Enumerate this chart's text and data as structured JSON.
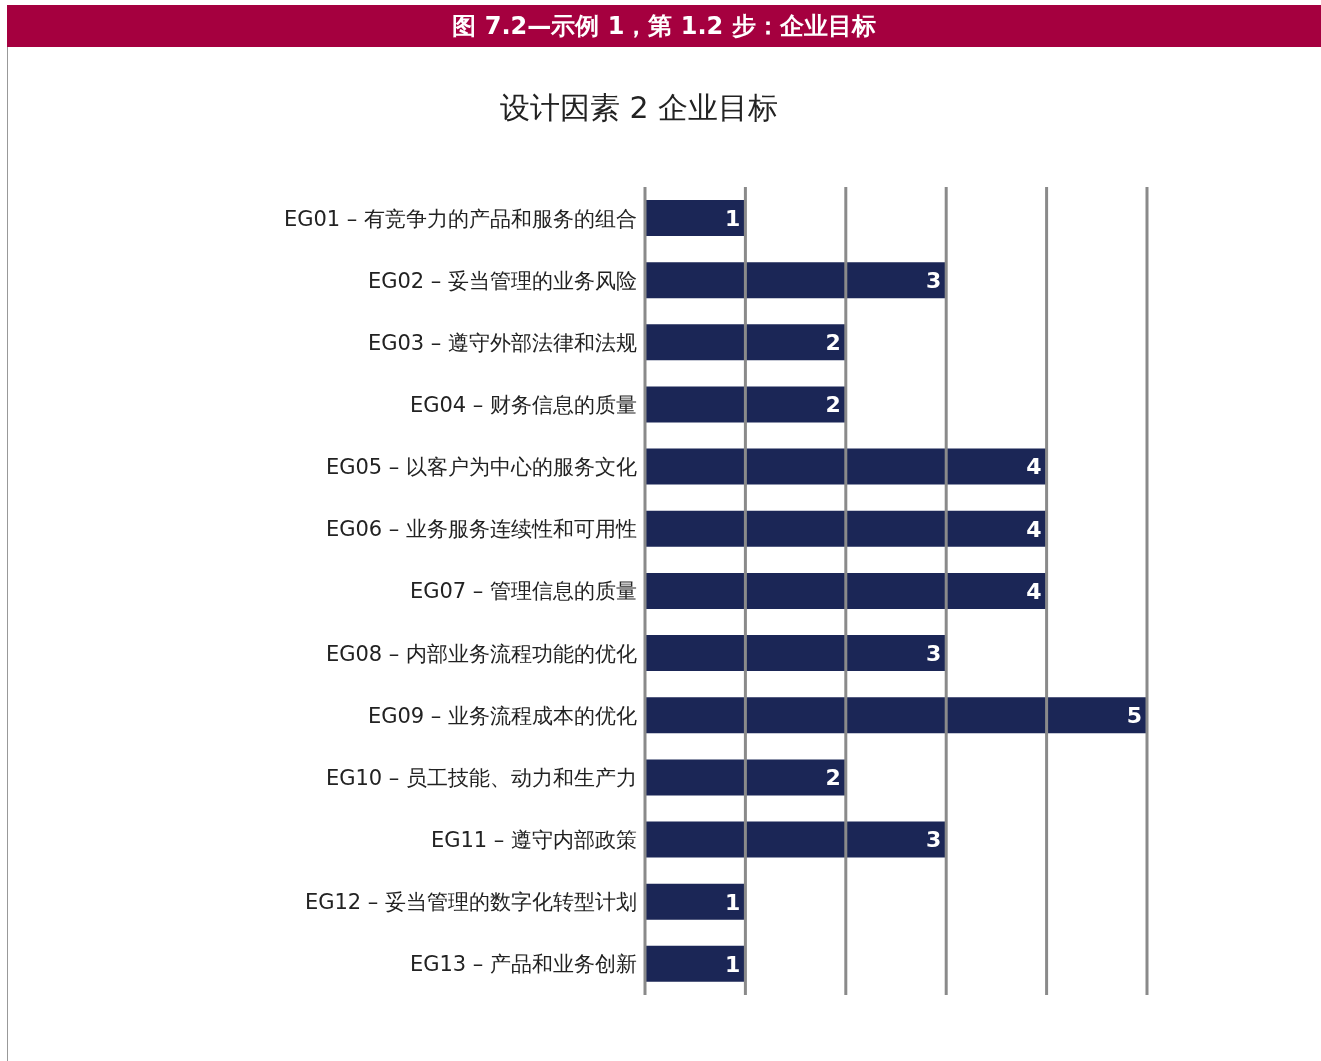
{
  "chart_data": {
    "type": "bar",
    "orientation": "horizontal",
    "title": "图 7.2—示例 1，第 1.2 步：企业目标",
    "subtitle": "设计因素 2 企业目标",
    "categories": [
      "EG01 – 有竞争力的产品和服务的组合",
      "EG02 – 妥当管理的业务风险",
      "EG03 – 遵守外部法律和法规",
      "EG04 – 财务信息的质量",
      "EG05 – 以客户为中心的服务文化",
      "EG06 – 业务服务连续性和可用性",
      "EG07 – 管理信息的质量",
      "EG08 – 内部业务流程功能的优化",
      "EG09 – 业务流程成本的优化",
      "EG10 – 员工技能、动力和生产力",
      "EG11 – 遵守内部政策",
      "EG12 – 妥当管理的数字化转型计划",
      "EG13 – 产品和业务创新"
    ],
    "values": [
      1,
      3,
      2,
      2,
      4,
      4,
      4,
      3,
      5,
      2,
      3,
      1,
      1
    ],
    "color": "#1b2656",
    "xlim": [
      0,
      5
    ],
    "xticks": [
      {
        "value": 0,
        "label": null
      },
      {
        "value": 1,
        "label": null
      },
      {
        "value": 2,
        "label": null
      },
      {
        "value": 3,
        "label": null
      },
      {
        "value": 4,
        "label": null
      },
      {
        "value": 5,
        "label": null
      }
    ],
    "grid": "x",
    "tick_labels": "y",
    "data_labels": true
  }
}
